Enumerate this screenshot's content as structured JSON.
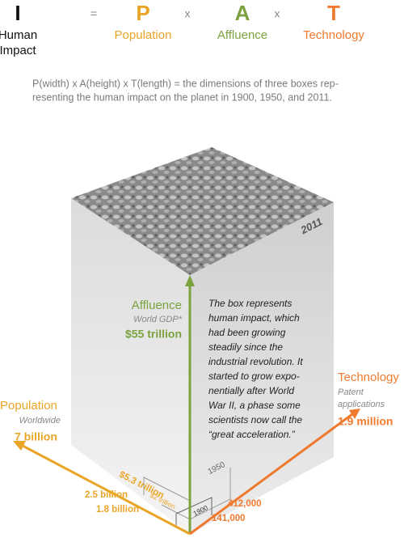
{
  "equation": {
    "symbols": [
      "I",
      "=",
      "P",
      "x",
      "A",
      "x",
      "T"
    ],
    "labels": {
      "impact": [
        "Human",
        "Impact"
      ],
      "population": "Population",
      "affluence": "Affluence",
      "technology": "Technology"
    }
  },
  "description": [
    "P(width) x A(height) x T(length) = the dimensions of three boxes rep-",
    "resenting the human impact on the planet in 1900, 1950, and 2011."
  ],
  "box": {
    "year": "2011",
    "affluence": {
      "title": "Affluence",
      "subtitle": "World GDP*",
      "value": "$55 trillion"
    },
    "technology": {
      "title": "Technology",
      "subtitle": [
        "Patent",
        "applications"
      ],
      "value": "1.9 million"
    },
    "population": {
      "title": "Population",
      "subtitle": "Worldwide",
      "value": "7 billion"
    },
    "note": [
      "The box represents",
      "human impact, which",
      "had been growing",
      "steadily since the",
      "industrial revolution. It",
      "started to grow expo-",
      "nentially after World",
      "War II, a phase some",
      "scientists now call the",
      "“great acceleration.”"
    ]
  },
  "smaller_boxes": [
    {
      "year": "1950",
      "gdp": "$5.3 trillion",
      "population": "2.5 billion",
      "patents": "412,000"
    },
    {
      "year": "1900",
      "gdp": "$2 trillion",
      "population": "1.8 billion",
      "patents": "141,000"
    }
  ]
}
